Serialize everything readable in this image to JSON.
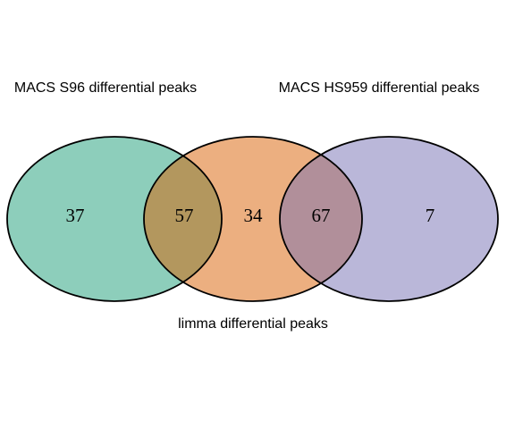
{
  "diagram": {
    "type": "venn",
    "sets": [
      {
        "name": "MACS S96 differential peaks",
        "color": "#1b9e77"
      },
      {
        "name": "limma differential peaks",
        "color": "#d95f02"
      },
      {
        "name": "MACS HS959 differential peaks",
        "color": "#7570b3"
      }
    ],
    "regions": {
      "s96_only": "37",
      "s96_limma": "57",
      "limma_only": "34",
      "limma_hs959": "67",
      "hs959_only": "7"
    },
    "fill_opacity": 0.5,
    "stroke_color": "#000000"
  }
}
